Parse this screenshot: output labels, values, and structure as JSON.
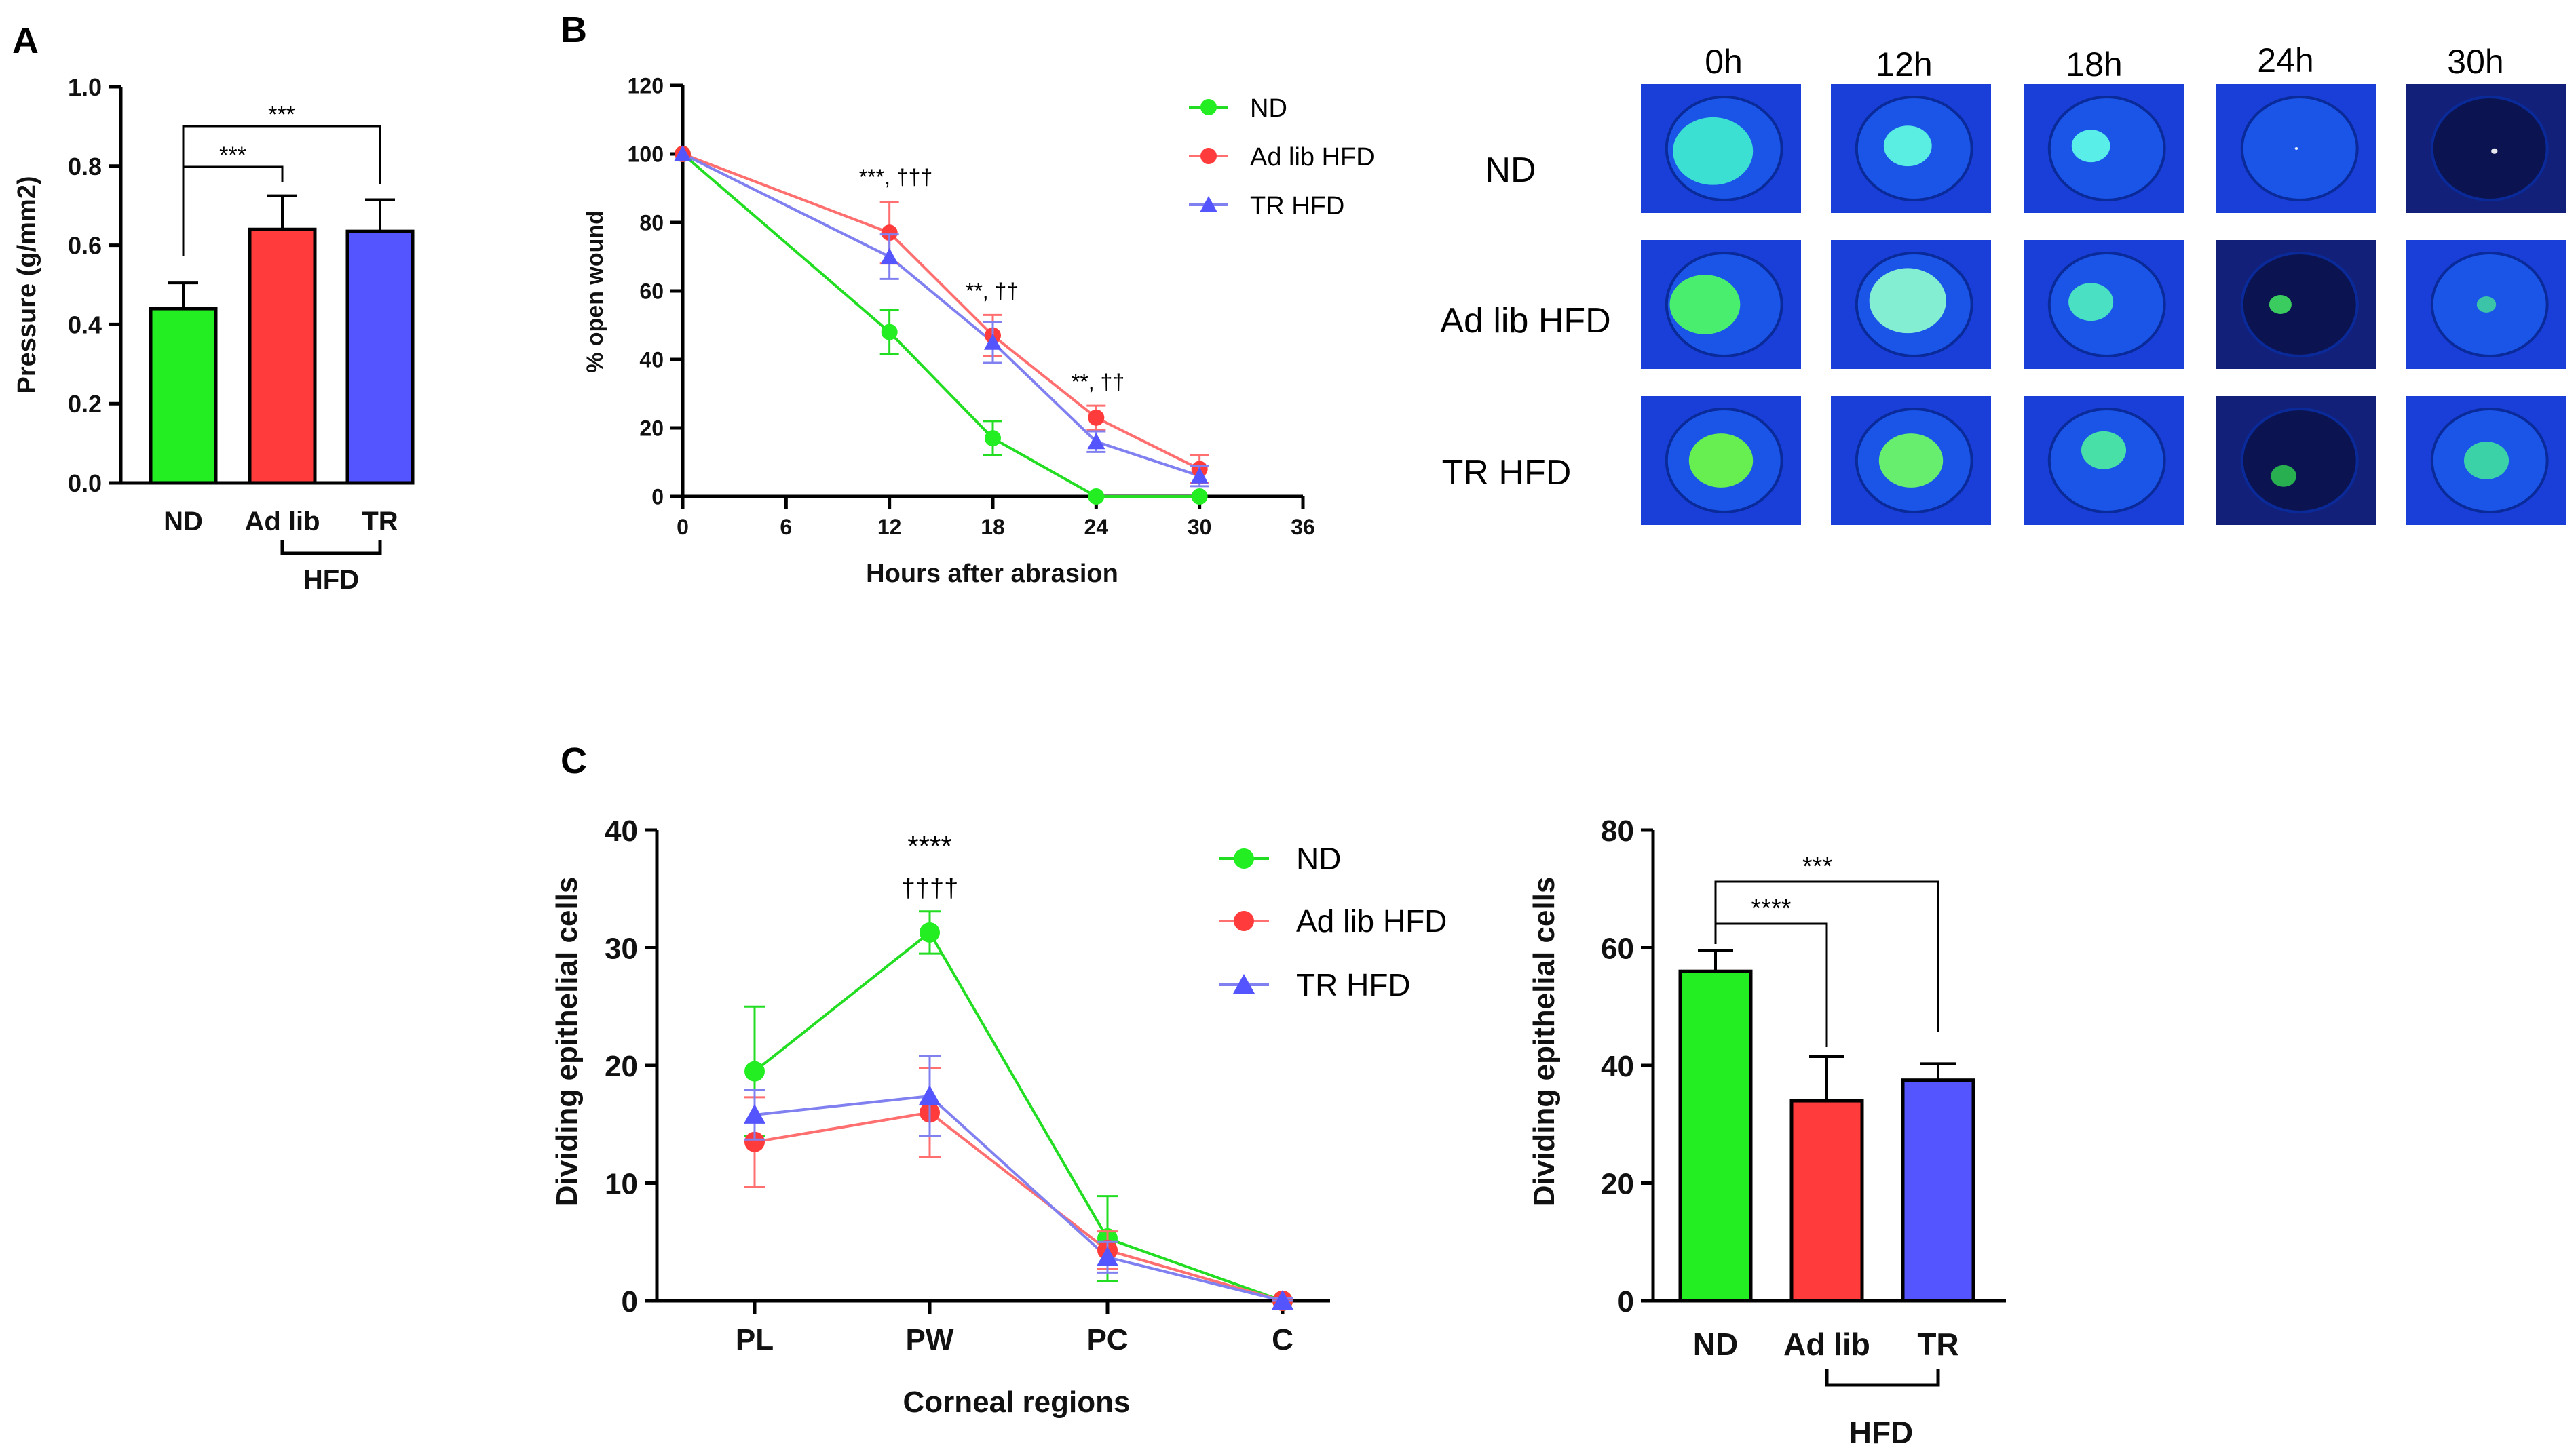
{
  "panels": {
    "a": "A",
    "b": "B",
    "c": "C"
  },
  "colors": {
    "nd": "#22ee22",
    "adlib": "#ff3b3b",
    "tr": "#5555ff",
    "nd_line": "#22dd22",
    "adlib_line": "#ff6f6f",
    "tr_line": "#8080f0",
    "photo_bg": "#1a3fd8",
    "photo_spot": "#3ce8c8"
  },
  "chart_data": [
    {
      "id": "A",
      "type": "bar",
      "ylabel": "Pressure (g/mm2)",
      "ylim": [
        0,
        1.0
      ],
      "yticks": [
        "0.0",
        "0.2",
        "0.4",
        "0.6",
        "0.8",
        "1.0"
      ],
      "categories": [
        "ND",
        "Ad lib",
        "TR"
      ],
      "group_label": "HFD",
      "values": [
        0.44,
        0.64,
        0.635
      ],
      "errors": [
        0.065,
        0.085,
        0.08
      ],
      "significance": [
        "***",
        "***"
      ]
    },
    {
      "id": "B",
      "type": "line",
      "xlabel": "Hours after abrasion",
      "ylabel": "% open wound",
      "xlim": [
        0,
        36
      ],
      "ylim": [
        0,
        120
      ],
      "xticks": [
        "0",
        "6",
        "12",
        "18",
        "24",
        "30",
        "36"
      ],
      "yticks": [
        "0",
        "20",
        "40",
        "60",
        "80",
        "100",
        "120"
      ],
      "x": [
        0,
        12,
        18,
        24,
        30
      ],
      "series": [
        {
          "name": "ND",
          "values": [
            100,
            48,
            17,
            0,
            0
          ],
          "errors": [
            0,
            6.5,
            5,
            0.5,
            0.5
          ]
        },
        {
          "name": "Ad lib HFD",
          "values": [
            100,
            77,
            47,
            23,
            8
          ],
          "errors": [
            0,
            9,
            6,
            3.5,
            4
          ]
        },
        {
          "name": "TR HFD",
          "values": [
            100,
            70,
            45,
            16,
            6
          ],
          "errors": [
            0,
            6.5,
            6,
            3,
            3
          ]
        }
      ],
      "annotations": [
        "***, †††",
        "**, ††",
        "**, ††"
      ]
    },
    {
      "id": "C-left",
      "type": "line",
      "xlabel": "Corneal regions",
      "ylabel": "Dividing epithelial cells",
      "ylim": [
        0,
        40
      ],
      "yticks": [
        "0",
        "10",
        "20",
        "30",
        "40"
      ],
      "categories": [
        "PL",
        "PW",
        "PC",
        "C"
      ],
      "series": [
        {
          "name": "ND",
          "values": [
            19.5,
            31.3,
            5.3,
            0
          ],
          "errors": [
            5.5,
            1.8,
            3.6,
            0.2
          ]
        },
        {
          "name": "Ad lib HFD",
          "values": [
            13.5,
            16,
            4.3,
            0
          ],
          "errors": [
            3.8,
            3.8,
            1.6,
            0.2
          ]
        },
        {
          "name": "TR HFD",
          "values": [
            15.8,
            17.4,
            3.7,
            0
          ],
          "errors": [
            2.1,
            3.4,
            1.3,
            0.2
          ]
        }
      ],
      "annotations": [
        "****",
        "††††"
      ]
    },
    {
      "id": "C-right",
      "type": "bar",
      "ylabel": "Dividing epithelial cells",
      "ylim": [
        0,
        80
      ],
      "yticks": [
        "0",
        "20",
        "40",
        "60",
        "80"
      ],
      "categories": [
        "ND",
        "Ad lib",
        "TR"
      ],
      "group_label": "HFD",
      "values": [
        56,
        34,
        37.5
      ],
      "errors": [
        3.5,
        7.5,
        2.8
      ],
      "significance": [
        "****",
        "***"
      ]
    }
  ],
  "photos": {
    "times": [
      "0h",
      "12h",
      "18h",
      "24h",
      "30h"
    ],
    "conditions": [
      "ND",
      "Ad lib HFD",
      "TR HFD"
    ]
  }
}
